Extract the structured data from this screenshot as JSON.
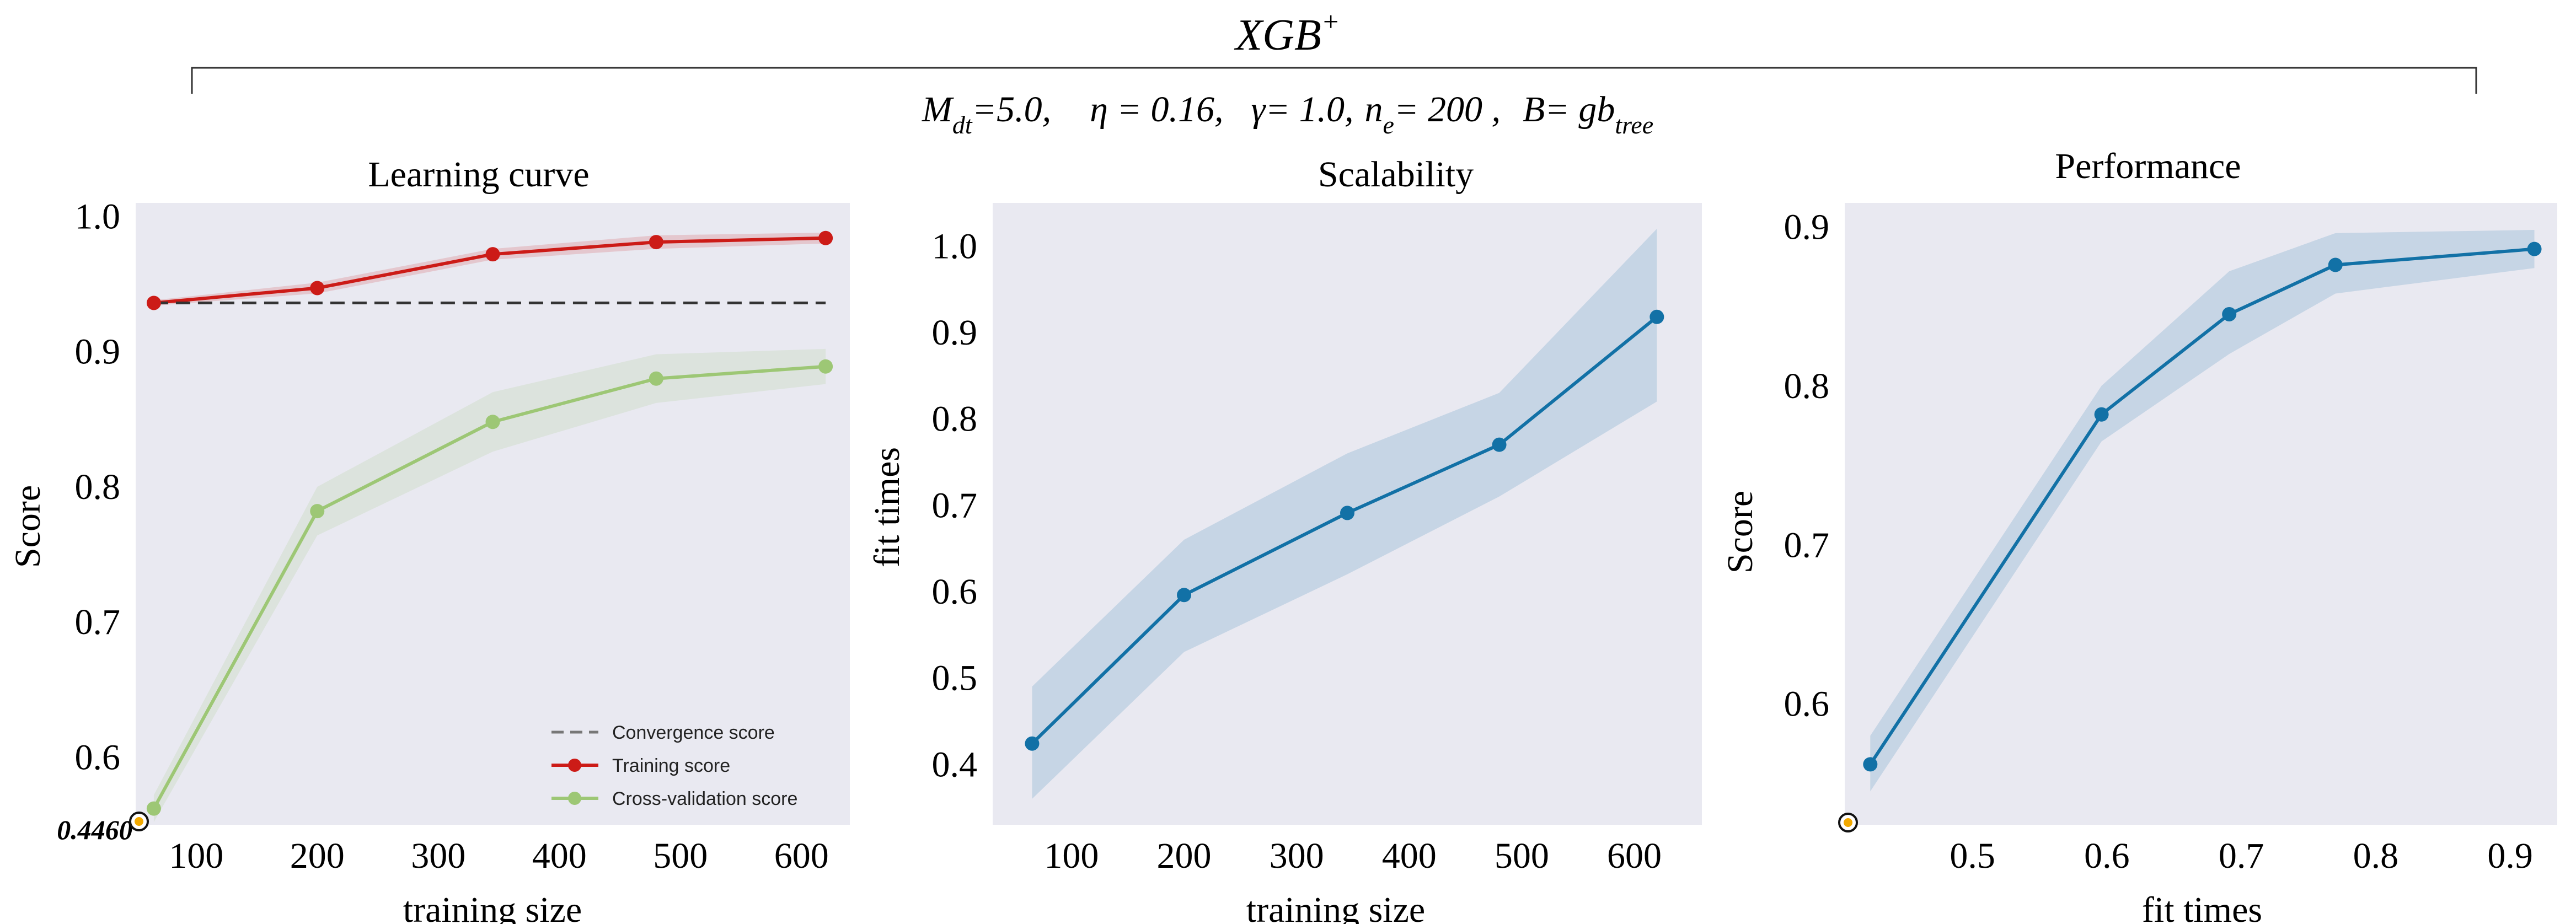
{
  "header": {
    "title": "XGB",
    "title_sup": "+",
    "params": {
      "p1_base": "M",
      "p1_sub": "dt",
      "p1_rest": "=5.0,",
      "p2": "η = 0.16,",
      "p3": "γ= 1.0,",
      "p4_base": "n",
      "p4_sub": "e",
      "p4_rest": "= 200 ,",
      "p5_base": "B= gb",
      "p5_sub": "tree"
    }
  },
  "colors": {
    "panel_bg": "#e9e9f1",
    "training": "#cc1b17",
    "cross_validation": "#9dc775",
    "convergence": "#555555",
    "blue": "#1271a6",
    "marker_highlight": "#f2a900"
  },
  "chart_data": [
    {
      "type": "line",
      "title": "Learning curve",
      "xlabel": "training size",
      "ylabel": "Score",
      "xlim": [
        50,
        640
      ],
      "ylim": [
        0.55,
        1.01
      ],
      "xticks": [
        100,
        200,
        300,
        400,
        500,
        600
      ],
      "yticks": [
        0.6,
        0.7,
        0.8,
        0.9,
        1.0
      ],
      "ytick_labels": [
        "0.6",
        "0.7",
        "0.8",
        "0.9",
        "1.0"
      ],
      "grid": false,
      "legend": "bottom-right",
      "annotation": "0.4460",
      "x": [
        65,
        200,
        345,
        480,
        620
      ],
      "series": [
        {
          "name": "Training score",
          "values": [
            0.936,
            0.947,
            0.972,
            0.981,
            0.984
          ],
          "band": [
            [
              0.934,
              0.938
            ],
            [
              0.943,
              0.951
            ],
            [
              0.968,
              0.976
            ],
            [
              0.976,
              0.986
            ],
            [
              0.98,
              0.988
            ]
          ]
        },
        {
          "name": "Cross-validation score",
          "values": [
            0.562,
            0.782,
            0.848,
            0.88,
            0.889
          ],
          "band": [
            [
              0.552,
              0.572
            ],
            [
              0.764,
              0.8
            ],
            [
              0.826,
              0.87
            ],
            [
              0.862,
              0.898
            ],
            [
              0.876,
              0.902
            ]
          ]
        },
        {
          "name": "Convergence score",
          "values": [
            0.936,
            0.936,
            0.936,
            0.936,
            0.936
          ],
          "dashed": true
        }
      ]
    },
    {
      "type": "line",
      "title": "Scalability",
      "xlabel": "training size",
      "ylabel": "fit times",
      "xlim": [
        30,
        660
      ],
      "ylim": [
        0.33,
        1.05
      ],
      "xticks": [
        100,
        200,
        300,
        400,
        500,
        600
      ],
      "yticks": [
        0.4,
        0.5,
        0.6,
        0.7,
        0.8,
        0.9,
        1.0
      ],
      "ytick_labels": [
        "0.4",
        "0.5",
        "0.6",
        "0.7",
        "0.8",
        "0.9",
        "1.0"
      ],
      "grid": false,
      "x": [
        65,
        200,
        345,
        480,
        620
      ],
      "series": [
        {
          "values": [
            0.424,
            0.596,
            0.691,
            0.77,
            0.918
          ],
          "band": [
            [
              0.36,
              0.49
            ],
            [
              0.53,
              0.66
            ],
            [
              0.62,
              0.76
            ],
            [
              0.71,
              0.83
            ],
            [
              0.82,
              1.02
            ]
          ]
        }
      ]
    },
    {
      "type": "line",
      "title": "Performance",
      "xlabel": "fit times",
      "ylabel": "Score",
      "xlim": [
        0.405,
        0.935
      ],
      "ylim": [
        0.524,
        0.915
      ],
      "xticks": [
        0.5,
        0.6,
        0.7,
        0.8,
        0.9
      ],
      "xtick_labels": [
        "0.5",
        "0.6",
        "0.7",
        "0.8",
        "0.9"
      ],
      "yticks": [
        0.6,
        0.7,
        0.8,
        0.9
      ],
      "ytick_labels": [
        "0.6",
        "0.7",
        "0.8",
        "0.9"
      ],
      "grid": false,
      "x": [
        0.424,
        0.596,
        0.691,
        0.77,
        0.918
      ],
      "series": [
        {
          "values": [
            0.562,
            0.782,
            0.845,
            0.876,
            0.886
          ],
          "band": [
            [
              0.545,
              0.58
            ],
            [
              0.765,
              0.8
            ],
            [
              0.82,
              0.872
            ],
            [
              0.858,
              0.896
            ],
            [
              0.874,
              0.898
            ]
          ]
        }
      ]
    }
  ]
}
